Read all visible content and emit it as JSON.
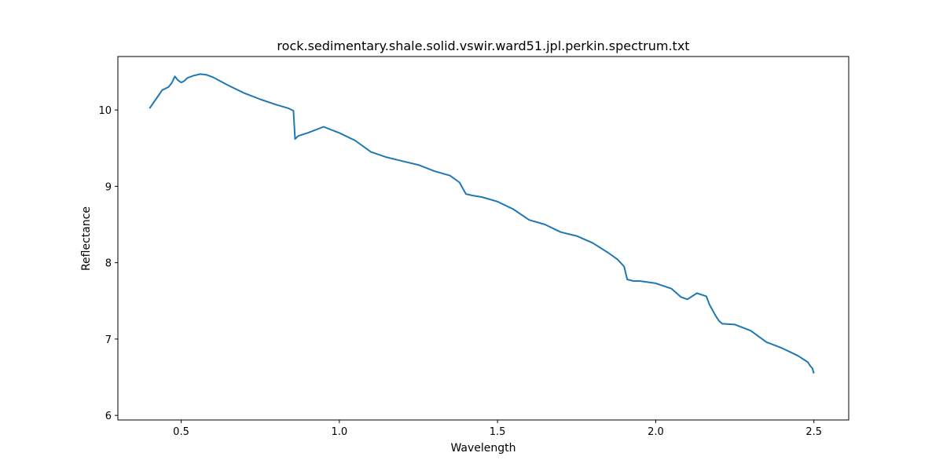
{
  "chart_data": {
    "type": "line",
    "title": "rock.sedimentary.shale.solid.vswir.ward51.jpl.perkin.spectrum.txt",
    "xlabel": "Wavelength",
    "ylabel": "Reflectance",
    "xlim": [
      0.3,
      2.61
    ],
    "ylim": [
      5.94,
      10.7
    ],
    "x_ticks": [
      0.5,
      1.0,
      1.5,
      2.0,
      2.5
    ],
    "x_tick_labels": [
      "0.5",
      "1.0",
      "1.5",
      "2.0",
      "2.5"
    ],
    "y_ticks": [
      6,
      7,
      8,
      9,
      10
    ],
    "y_tick_labels": [
      "6",
      "7",
      "8",
      "9",
      "10"
    ],
    "grid": false,
    "legend": "none",
    "line_color": "#1f77b4",
    "series": [
      {
        "x": [
          0.4,
          0.42,
          0.44,
          0.46,
          0.47,
          0.48,
          0.49,
          0.5,
          0.51,
          0.52,
          0.54,
          0.56,
          0.58,
          0.6,
          0.65,
          0.7,
          0.75,
          0.8,
          0.84,
          0.855,
          0.86,
          0.865,
          0.87,
          0.9,
          0.95,
          1.0,
          1.05,
          1.1,
          1.15,
          1.2,
          1.25,
          1.3,
          1.35,
          1.38,
          1.4,
          1.42,
          1.45,
          1.5,
          1.55,
          1.6,
          1.65,
          1.7,
          1.75,
          1.8,
          1.85,
          1.88,
          1.9,
          1.91,
          1.93,
          1.95,
          2.0,
          2.05,
          2.08,
          2.1,
          2.13,
          2.16,
          2.17,
          2.19,
          2.2,
          2.21,
          2.25,
          2.3,
          2.35,
          2.4,
          2.45,
          2.48,
          2.49,
          2.495,
          2.5
        ],
        "y": [
          10.02,
          10.14,
          10.26,
          10.3,
          10.35,
          10.44,
          10.39,
          10.36,
          10.38,
          10.42,
          10.45,
          10.47,
          10.46,
          10.43,
          10.32,
          10.22,
          10.14,
          10.07,
          10.02,
          9.99,
          9.62,
          9.64,
          9.66,
          9.7,
          9.78,
          9.7,
          9.6,
          9.45,
          9.38,
          9.33,
          9.28,
          9.2,
          9.14,
          9.05,
          8.9,
          8.88,
          8.86,
          8.8,
          8.7,
          8.56,
          8.5,
          8.4,
          8.35,
          8.26,
          8.13,
          8.04,
          7.95,
          7.78,
          7.76,
          7.76,
          7.73,
          7.66,
          7.55,
          7.52,
          7.6,
          7.56,
          7.45,
          7.3,
          7.24,
          7.2,
          7.19,
          7.11,
          6.96,
          6.88,
          6.78,
          6.7,
          6.64,
          6.62,
          6.55
        ]
      }
    ]
  }
}
